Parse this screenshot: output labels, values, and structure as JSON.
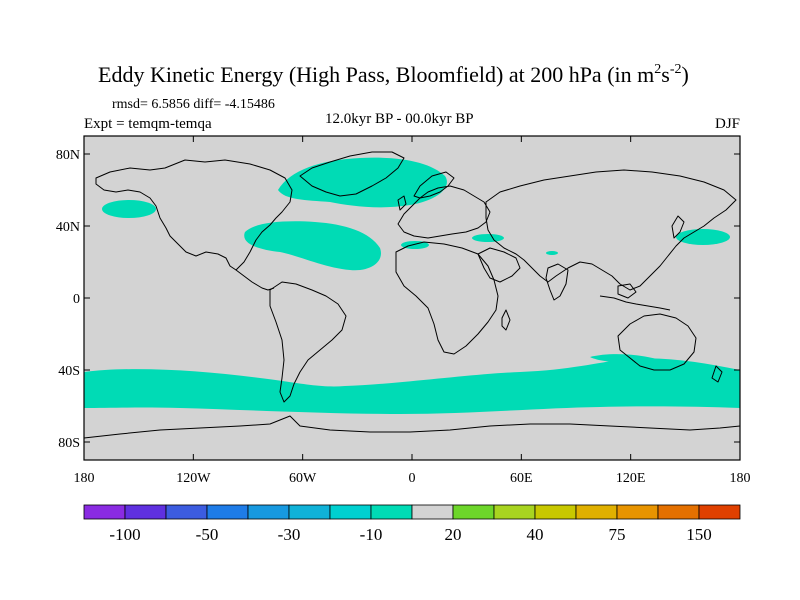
{
  "title_main": "Eddy Kinetic Energy (High Pass, Bloomfield) at 200 hPa (in m",
  "title_sup1": "2",
  "title_mid": "s",
  "title_sup2": "-2",
  "title_close": ")",
  "stats": "rmsd= 6.5856 diff= -4.15486",
  "experiment": "Expt = temqm-temqa",
  "period": "12.0kyr BP - 00.0kyr BP",
  "season": "DJF",
  "lat_ticks": [
    {
      "value": 80,
      "label": "80N"
    },
    {
      "value": 40,
      "label": "40N"
    },
    {
      "value": 0,
      "label": "0"
    },
    {
      "value": -40,
      "label": "40S"
    },
    {
      "value": -80,
      "label": "80S"
    }
  ],
  "lon_ticks": [
    {
      "value": -180,
      "label": "180"
    },
    {
      "value": -120,
      "label": "120W"
    },
    {
      "value": -60,
      "label": "60W"
    },
    {
      "value": 0,
      "label": "0"
    },
    {
      "value": 60,
      "label": "60E"
    },
    {
      "value": 120,
      "label": "120E"
    },
    {
      "value": 180,
      "label": "180"
    }
  ],
  "colors": {
    "land_ocean_background": "#d3d3d3",
    "anomaly_fill": "#00dbb5",
    "coastline": "#000000"
  },
  "colorbar": {
    "colors": [
      "#8a2be2",
      "#5f30e0",
      "#3c5ce0",
      "#1e7ce8",
      "#1799e0",
      "#10b2d8",
      "#00d0d0",
      "#00dbb5",
      "#d3d3d3",
      "#6dd62a",
      "#a8d420",
      "#c8c800",
      "#e0b000",
      "#e89400",
      "#e47000",
      "#e04000"
    ],
    "labels": [
      "-100",
      "-50",
      "-30",
      "-10",
      "20",
      "40",
      "75",
      "150"
    ]
  },
  "chart_data": {
    "type": "heatmap",
    "variable": "Eddy Kinetic Energy (High Pass, Bloomfield) at 200 hPa",
    "units": "m2s-2",
    "x_range": [
      -180,
      180
    ],
    "y_range": [
      -90,
      90
    ],
    "regions_in_bin_-10_to_-30": [
      {
        "lon": [
          -55,
          5
        ],
        "lat": [
          53,
          75
        ]
      },
      {
        "lon": [
          -165,
          -150
        ],
        "lat": [
          42,
          48
        ]
      },
      {
        "lon": [
          -90,
          -25
        ],
        "lat": [
          22,
          45
        ]
      },
      {
        "lon": [
          0,
          40
        ],
        "lat": [
          30,
          38
        ]
      },
      {
        "lon": [
          148,
          168
        ],
        "lat": [
          30,
          38
        ]
      },
      {
        "lon": [
          -180,
          180
        ],
        "lat": [
          -62,
          -40
        ]
      }
    ]
  }
}
